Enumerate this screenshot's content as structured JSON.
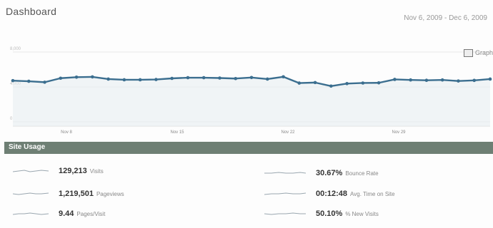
{
  "header": {
    "title": "Dashboard",
    "date_range": "Nov 6, 2009 - Dec 6, 2009"
  },
  "chart_data": {
    "type": "line",
    "x_tick_labels": [
      "Nov 8",
      "Nov 15",
      "Nov 22",
      "Nov 29"
    ],
    "y_tick_labels": [
      "8,000",
      "4,000",
      "0"
    ],
    "values": [
      4720,
      4650,
      4540,
      5000,
      5120,
      5150,
      4900,
      4820,
      4820,
      4850,
      4980,
      5060,
      5060,
      5020,
      4960,
      5080,
      4900,
      5160,
      4440,
      4500,
      4100,
      4380,
      4450,
      4470,
      4860,
      4800,
      4760,
      4800,
      4680,
      4750,
      4900
    ],
    "ylim": [
      0,
      8000
    ],
    "grid": true,
    "line_color": "#3b6e8f",
    "fill_color": "#e8eef2"
  },
  "compare_label": "Graph",
  "site_usage": {
    "title": "Site Usage",
    "metrics": [
      {
        "value": "129,213",
        "label": "Visits"
      },
      {
        "value": "1,219,501",
        "label": "Pageviews"
      },
      {
        "value": "9.44",
        "label": "Pages/Visit"
      },
      {
        "value": "30.67%",
        "label": "Bounce Rate"
      },
      {
        "value": "00:12:48",
        "label": "Avg. Time on Site"
      },
      {
        "value": "50.10%",
        "label": "% New Visits"
      }
    ]
  }
}
